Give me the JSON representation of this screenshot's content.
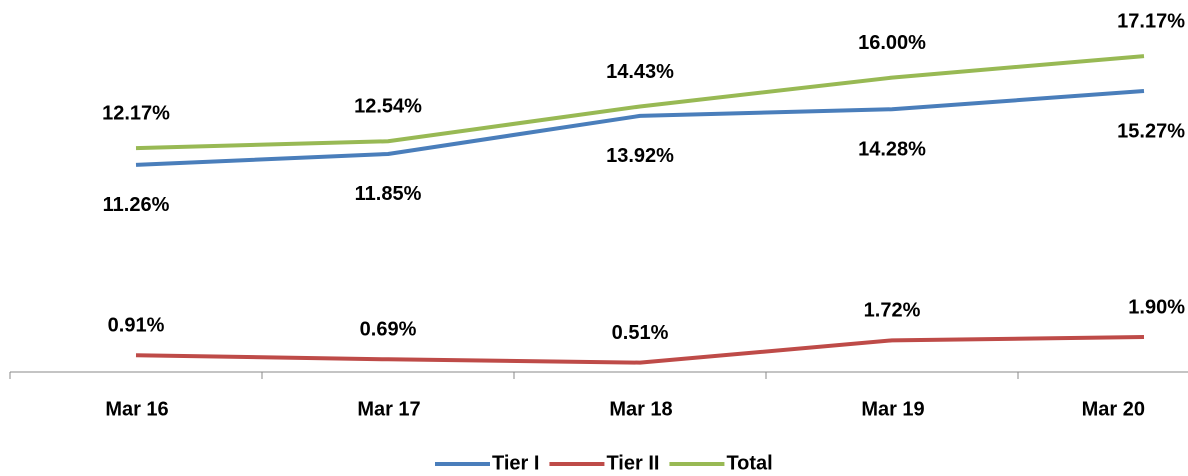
{
  "chart_data": {
    "type": "line",
    "categories": [
      "Mar 16",
      "Mar 17",
      "Mar 18",
      "Mar 19",
      "Mar 20"
    ],
    "series": [
      {
        "name": "Tier I",
        "color": "#4a7ebb",
        "values": [
          11.26,
          11.85,
          13.92,
          14.28,
          15.27
        ],
        "value_labels": [
          "11.26%",
          "11.85%",
          "13.92%",
          "14.28%",
          "15.27%"
        ]
      },
      {
        "name": "Tier II",
        "color": "#be4b48",
        "values": [
          0.91,
          0.69,
          0.51,
          1.72,
          1.9
        ],
        "value_labels": [
          "0.91%",
          "0.69%",
          "0.51%",
          "1.72%",
          "1.90%"
        ]
      },
      {
        "name": "Total",
        "color": "#98b954",
        "values": [
          12.17,
          12.54,
          14.43,
          16.0,
          17.17
        ],
        "value_labels": [
          "12.17%",
          "12.54%",
          "14.43%",
          "16.00%",
          "17.17%"
        ]
      }
    ],
    "ylim": [
      0,
      20
    ]
  }
}
